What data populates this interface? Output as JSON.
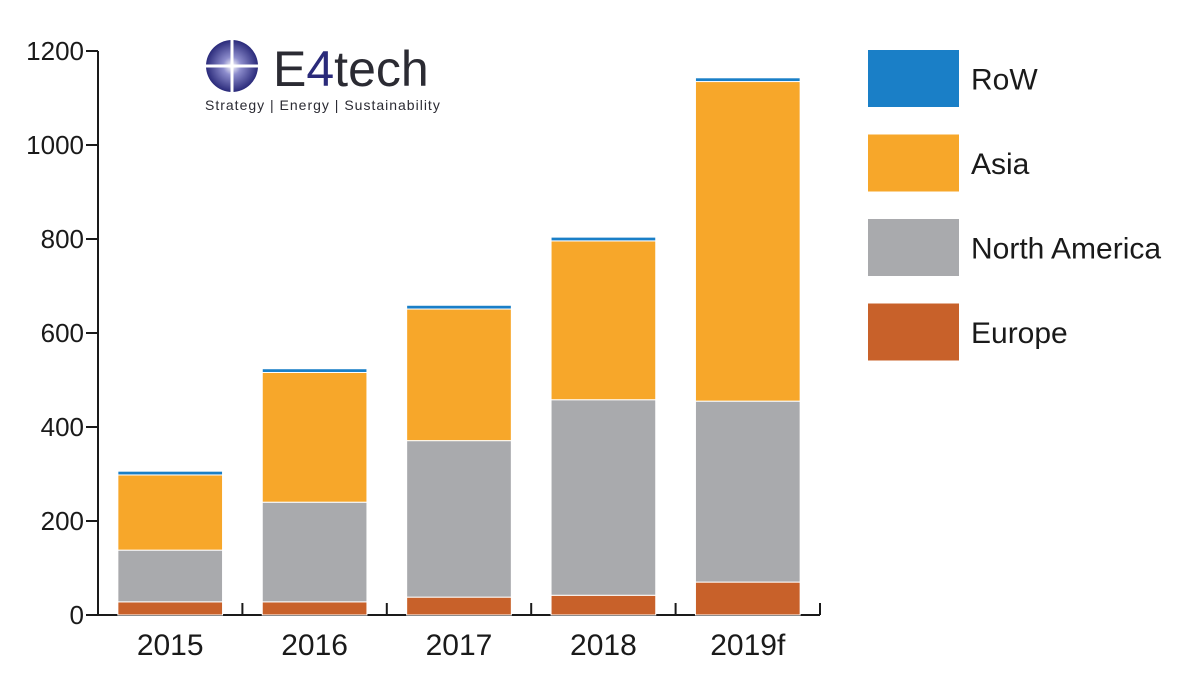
{
  "logo": {
    "wordmark_prefix": "E",
    "wordmark_accent": "4",
    "wordmark_suffix": "tech",
    "tagline": "Strategy | Energy | Sustainability",
    "accent_color": "#2a2a7a"
  },
  "chart_data": {
    "type": "bar",
    "stacked": true,
    "categories": [
      "2015",
      "2016",
      "2017",
      "2018",
      "2019f"
    ],
    "series": [
      {
        "name": "Europe",
        "color": "#c8612a",
        "values": [
          28,
          28,
          38,
          42,
          70
        ]
      },
      {
        "name": "North America",
        "color": "#a9aaad",
        "values": [
          110,
          212,
          333,
          416,
          385
        ]
      },
      {
        "name": "Asia",
        "color": "#f7a72a",
        "values": [
          160,
          276,
          280,
          338,
          680
        ]
      },
      {
        "name": "RoW",
        "color": "#1a7fc7",
        "values": [
          8,
          8,
          8,
          8,
          8
        ]
      }
    ],
    "ylim": [
      0,
      1200
    ],
    "yticks": [
      0,
      200,
      400,
      600,
      800,
      1000,
      1200
    ],
    "xlabel": "",
    "ylabel": "",
    "grid": false,
    "legend_position": "right",
    "legend_order": [
      "RoW",
      "Asia",
      "North America",
      "Europe"
    ]
  }
}
